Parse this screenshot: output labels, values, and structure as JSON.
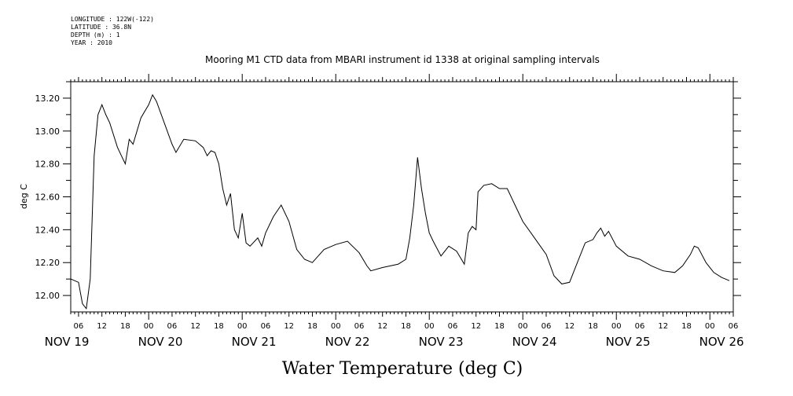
{
  "header": {
    "longitude": "LONGITUDE : 122W(-122)",
    "latitude": "LATITUDE : 36.8N",
    "depth": "DEPTH (m) : 1",
    "year": "YEAR : 2010"
  },
  "chart_data": {
    "type": "line",
    "title": "Mooring M1 CTD data from MBARI instrument id 1338 at original sampling intervals",
    "xlabel": "Water Temperature (deg C)",
    "ylabel": "deg C",
    "ylim": [
      11.9,
      13.3
    ],
    "xlim": [
      "2010-11-19T04:00",
      "2010-11-26T06:00"
    ],
    "yticks": [
      "12.00",
      "12.20",
      "12.40",
      "12.60",
      "12.80",
      "13.00",
      "13.20"
    ],
    "xtick_hours": [
      "06",
      "12",
      "18",
      "00",
      "06",
      "12",
      "18",
      "00",
      "06",
      "12",
      "18",
      "00",
      "06",
      "12",
      "18",
      "00",
      "06",
      "12",
      "18",
      "00",
      "06",
      "12",
      "18",
      "00",
      "06",
      "12",
      "18",
      "00",
      "06",
      "12",
      "18",
      "00",
      "06"
    ],
    "day_labels": [
      "NOV 19",
      "NOV 20",
      "NOV 21",
      "NOV 22",
      "NOV 23",
      "NOV 24",
      "NOV 25",
      "NOV 26"
    ],
    "grid": false,
    "series": [
      {
        "values": [
          [
            "2010-11-19T04:00",
            12.1
          ],
          [
            "2010-11-19T06:00",
            12.08
          ],
          [
            "2010-11-19T07:00",
            11.95
          ],
          [
            "2010-11-19T08:00",
            11.92
          ],
          [
            "2010-11-19T09:00",
            12.1
          ],
          [
            "2010-11-19T10:00",
            12.85
          ],
          [
            "2010-11-19T11:00",
            13.1
          ],
          [
            "2010-11-19T12:00",
            13.16
          ],
          [
            "2010-11-19T13:00",
            13.1
          ],
          [
            "2010-11-19T14:00",
            13.05
          ],
          [
            "2010-11-19T16:00",
            12.9
          ],
          [
            "2010-11-19T18:00",
            12.8
          ],
          [
            "2010-11-19T19:00",
            12.95
          ],
          [
            "2010-11-19T20:00",
            12.92
          ],
          [
            "2010-11-19T22:00",
            13.08
          ],
          [
            "2010-11-20T00:00",
            13.16
          ],
          [
            "2010-11-20T01:00",
            13.22
          ],
          [
            "2010-11-20T02:00",
            13.18
          ],
          [
            "2010-11-20T04:00",
            13.05
          ],
          [
            "2010-11-20T06:00",
            12.92
          ],
          [
            "2010-11-20T07:00",
            12.87
          ],
          [
            "2010-11-20T09:00",
            12.95
          ],
          [
            "2010-11-20T12:00",
            12.94
          ],
          [
            "2010-11-20T14:00",
            12.9
          ],
          [
            "2010-11-20T15:00",
            12.85
          ],
          [
            "2010-11-20T16:00",
            12.88
          ],
          [
            "2010-11-20T17:00",
            12.87
          ],
          [
            "2010-11-20T18:00",
            12.8
          ],
          [
            "2010-11-20T19:00",
            12.65
          ],
          [
            "2010-11-20T20:00",
            12.55
          ],
          [
            "2010-11-20T21:00",
            12.62
          ],
          [
            "2010-11-20T22:00",
            12.4
          ],
          [
            "2010-11-20T23:00",
            12.35
          ],
          [
            "2010-11-21T00:00",
            12.5
          ],
          [
            "2010-11-21T01:00",
            12.32
          ],
          [
            "2010-11-21T02:00",
            12.3
          ],
          [
            "2010-11-21T04:00",
            12.35
          ],
          [
            "2010-11-21T05:00",
            12.3
          ],
          [
            "2010-11-21T06:00",
            12.38
          ],
          [
            "2010-11-21T08:00",
            12.48
          ],
          [
            "2010-11-21T10:00",
            12.55
          ],
          [
            "2010-11-21T12:00",
            12.45
          ],
          [
            "2010-11-21T14:00",
            12.28
          ],
          [
            "2010-11-21T16:00",
            12.22
          ],
          [
            "2010-11-21T18:00",
            12.2
          ],
          [
            "2010-11-21T21:00",
            12.28
          ],
          [
            "2010-11-22T00:00",
            12.31
          ],
          [
            "2010-11-22T03:00",
            12.33
          ],
          [
            "2010-11-22T06:00",
            12.26
          ],
          [
            "2010-11-22T08:00",
            12.18
          ],
          [
            "2010-11-22T09:00",
            12.15
          ],
          [
            "2010-11-22T12:00",
            12.17
          ],
          [
            "2010-11-22T16:00",
            12.19
          ],
          [
            "2010-11-22T18:00",
            12.22
          ],
          [
            "2010-11-22T19:00",
            12.35
          ],
          [
            "2010-11-22T20:00",
            12.55
          ],
          [
            "2010-11-22T21:00",
            12.84
          ],
          [
            "2010-11-22T22:00",
            12.65
          ],
          [
            "2010-11-22T23:00",
            12.5
          ],
          [
            "2010-11-23T00:00",
            12.38
          ],
          [
            "2010-11-23T01:00",
            12.33
          ],
          [
            "2010-11-23T03:00",
            12.24
          ],
          [
            "2010-11-23T05:00",
            12.3
          ],
          [
            "2010-11-23T07:00",
            12.27
          ],
          [
            "2010-11-23T09:00",
            12.19
          ],
          [
            "2010-11-23T10:00",
            12.38
          ],
          [
            "2010-11-23T11:00",
            12.42
          ],
          [
            "2010-11-23T12:00",
            12.4
          ],
          [
            "2010-11-23T12:30",
            12.63
          ],
          [
            "2010-11-23T14:00",
            12.67
          ],
          [
            "2010-11-23T16:00",
            12.68
          ],
          [
            "2010-11-23T18:00",
            12.65
          ],
          [
            "2010-11-23T20:00",
            12.65
          ],
          [
            "2010-11-23T22:00",
            12.55
          ],
          [
            "2010-11-24T00:00",
            12.45
          ],
          [
            "2010-11-24T03:00",
            12.35
          ],
          [
            "2010-11-24T06:00",
            12.25
          ],
          [
            "2010-11-24T08:00",
            12.12
          ],
          [
            "2010-11-24T10:00",
            12.07
          ],
          [
            "2010-11-24T12:00",
            12.08
          ],
          [
            "2010-11-24T14:00",
            12.2
          ],
          [
            "2010-11-24T16:00",
            12.32
          ],
          [
            "2010-11-24T18:00",
            12.34
          ],
          [
            "2010-11-24T19:00",
            12.38
          ],
          [
            "2010-11-24T20:00",
            12.41
          ],
          [
            "2010-11-24T21:00",
            12.36
          ],
          [
            "2010-11-24T22:00",
            12.39
          ],
          [
            "2010-11-25T00:00",
            12.3
          ],
          [
            "2010-11-25T03:00",
            12.24
          ],
          [
            "2010-11-25T06:00",
            12.22
          ],
          [
            "2010-11-25T09:00",
            12.18
          ],
          [
            "2010-11-25T12:00",
            12.15
          ],
          [
            "2010-11-25T15:00",
            12.14
          ],
          [
            "2010-11-25T17:00",
            12.18
          ],
          [
            "2010-11-25T19:00",
            12.25
          ],
          [
            "2010-11-25T20:00",
            12.3
          ],
          [
            "2010-11-25T21:00",
            12.29
          ],
          [
            "2010-11-25T23:00",
            12.2
          ],
          [
            "2010-11-26T01:00",
            12.14
          ],
          [
            "2010-11-26T03:00",
            12.11
          ],
          [
            "2010-11-26T05:00",
            12.09
          ]
        ]
      }
    ]
  }
}
